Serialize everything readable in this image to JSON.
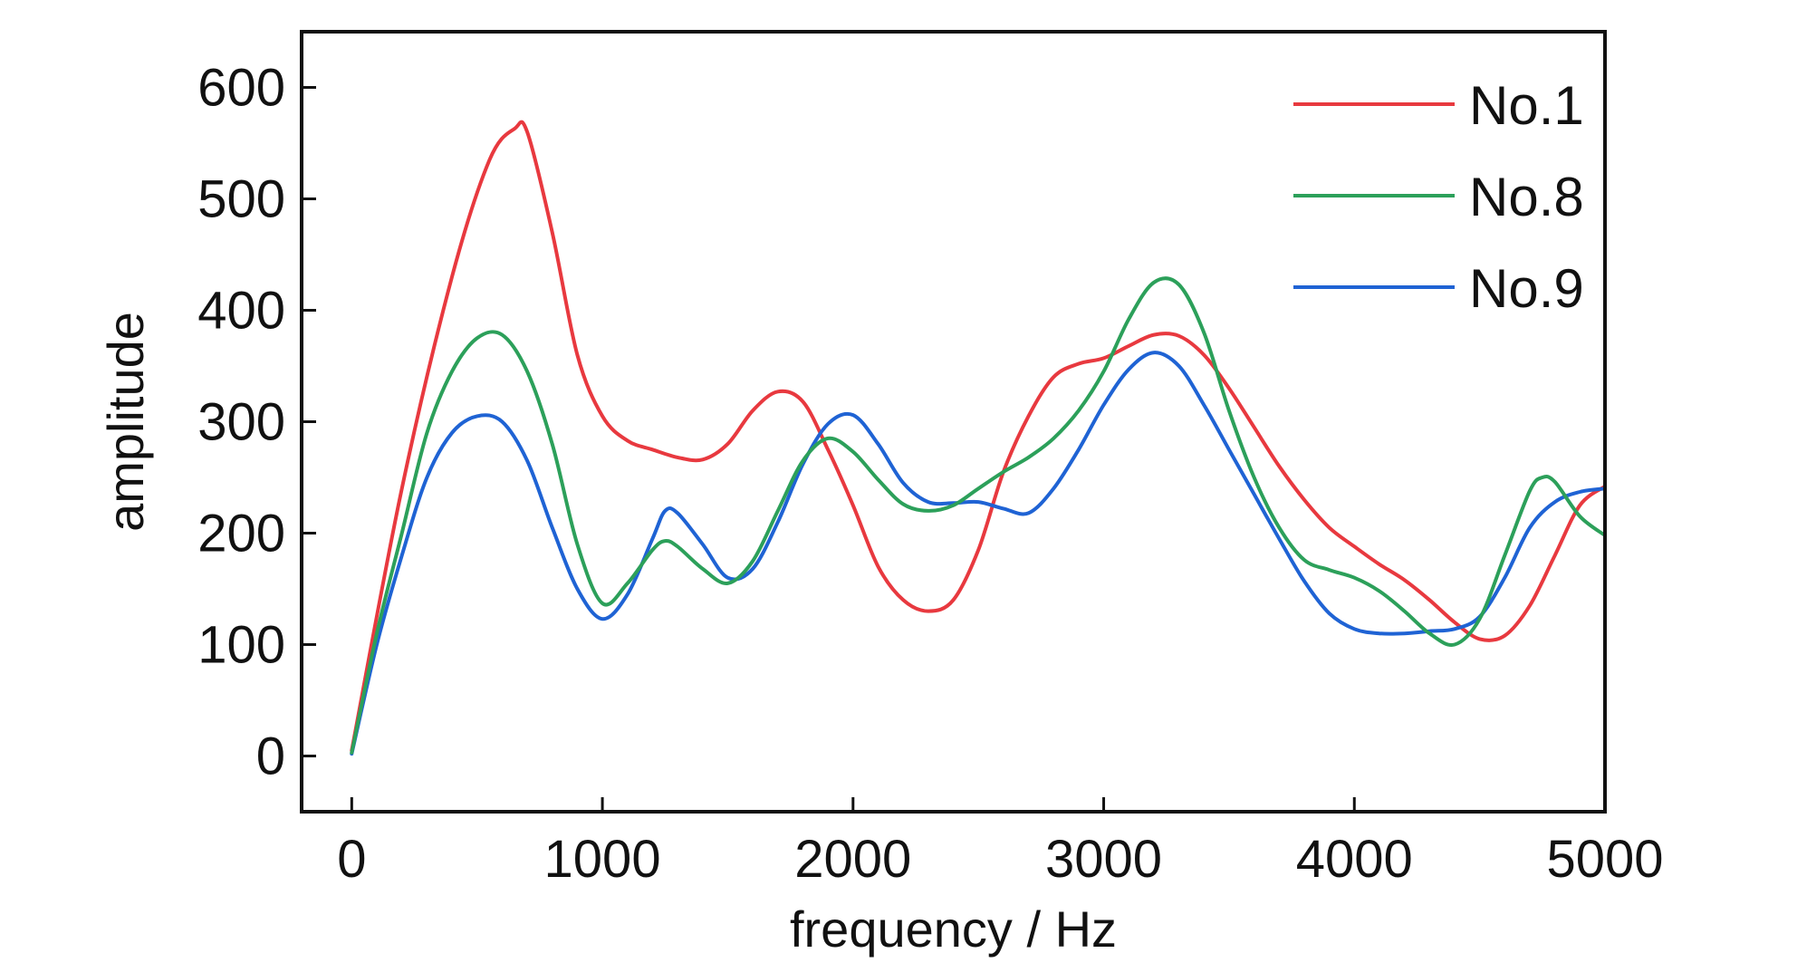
{
  "chart_data": {
    "type": "line",
    "xlabel": "frequency / Hz",
    "ylabel": "amplitude",
    "xlim": [
      -200,
      5000
    ],
    "ylim": [
      -50,
      650
    ],
    "xticks": [
      0,
      1000,
      2000,
      3000,
      4000,
      5000
    ],
    "yticks": [
      0,
      100,
      200,
      300,
      400,
      500,
      600
    ],
    "grid": false,
    "legend_position": "top-right",
    "series": [
      {
        "name": "No.1",
        "color": "#e8393f",
        "points": [
          [
            0,
            5
          ],
          [
            200,
            240
          ],
          [
            400,
            430
          ],
          [
            550,
            535
          ],
          [
            650,
            563
          ],
          [
            700,
            560
          ],
          [
            800,
            470
          ],
          [
            900,
            360
          ],
          [
            1000,
            305
          ],
          [
            1100,
            283
          ],
          [
            1200,
            275
          ],
          [
            1300,
            268
          ],
          [
            1400,
            266
          ],
          [
            1500,
            280
          ],
          [
            1600,
            310
          ],
          [
            1700,
            327
          ],
          [
            1800,
            318
          ],
          [
            1900,
            275
          ],
          [
            2000,
            225
          ],
          [
            2100,
            170
          ],
          [
            2200,
            140
          ],
          [
            2300,
            130
          ],
          [
            2400,
            140
          ],
          [
            2500,
            185
          ],
          [
            2600,
            255
          ],
          [
            2700,
            305
          ],
          [
            2800,
            340
          ],
          [
            2900,
            352
          ],
          [
            3000,
            357
          ],
          [
            3100,
            368
          ],
          [
            3200,
            378
          ],
          [
            3300,
            377
          ],
          [
            3400,
            360
          ],
          [
            3500,
            330
          ],
          [
            3600,
            295
          ],
          [
            3700,
            260
          ],
          [
            3800,
            230
          ],
          [
            3900,
            205
          ],
          [
            4000,
            188
          ],
          [
            4100,
            172
          ],
          [
            4200,
            158
          ],
          [
            4300,
            140
          ],
          [
            4400,
            120
          ],
          [
            4500,
            105
          ],
          [
            4600,
            108
          ],
          [
            4700,
            135
          ],
          [
            4800,
            180
          ],
          [
            4900,
            225
          ],
          [
            5000,
            242
          ]
        ]
      },
      {
        "name": "No.8",
        "color": "#2ca05a",
        "points": [
          [
            0,
            3
          ],
          [
            100,
            110
          ],
          [
            200,
            200
          ],
          [
            300,
            290
          ],
          [
            400,
            345
          ],
          [
            500,
            375
          ],
          [
            600,
            378
          ],
          [
            700,
            345
          ],
          [
            800,
            280
          ],
          [
            900,
            190
          ],
          [
            1000,
            137
          ],
          [
            1100,
            155
          ],
          [
            1200,
            185
          ],
          [
            1250,
            193
          ],
          [
            1300,
            188
          ],
          [
            1400,
            168
          ],
          [
            1500,
            155
          ],
          [
            1600,
            175
          ],
          [
            1700,
            220
          ],
          [
            1800,
            265
          ],
          [
            1900,
            285
          ],
          [
            2000,
            273
          ],
          [
            2100,
            248
          ],
          [
            2200,
            226
          ],
          [
            2300,
            220
          ],
          [
            2400,
            225
          ],
          [
            2500,
            240
          ],
          [
            2600,
            255
          ],
          [
            2700,
            268
          ],
          [
            2800,
            285
          ],
          [
            2900,
            310
          ],
          [
            3000,
            345
          ],
          [
            3100,
            392
          ],
          [
            3200,
            425
          ],
          [
            3300,
            423
          ],
          [
            3400,
            380
          ],
          [
            3500,
            310
          ],
          [
            3600,
            250
          ],
          [
            3700,
            205
          ],
          [
            3800,
            176
          ],
          [
            3900,
            167
          ],
          [
            4000,
            160
          ],
          [
            4100,
            148
          ],
          [
            4200,
            130
          ],
          [
            4300,
            110
          ],
          [
            4400,
            100
          ],
          [
            4500,
            123
          ],
          [
            4600,
            180
          ],
          [
            4700,
            238
          ],
          [
            4750,
            250
          ],
          [
            4800,
            246
          ],
          [
            4900,
            215
          ],
          [
            5000,
            198
          ]
        ]
      },
      {
        "name": "No.9",
        "color": "#1f63d4",
        "points": [
          [
            0,
            2
          ],
          [
            100,
            100
          ],
          [
            200,
            180
          ],
          [
            300,
            250
          ],
          [
            400,
            290
          ],
          [
            500,
            305
          ],
          [
            600,
            300
          ],
          [
            700,
            265
          ],
          [
            800,
            205
          ],
          [
            900,
            150
          ],
          [
            1000,
            123
          ],
          [
            1100,
            145
          ],
          [
            1200,
            195
          ],
          [
            1250,
            220
          ],
          [
            1300,
            218
          ],
          [
            1400,
            190
          ],
          [
            1500,
            160
          ],
          [
            1600,
            168
          ],
          [
            1700,
            210
          ],
          [
            1800,
            262
          ],
          [
            1900,
            298
          ],
          [
            2000,
            306
          ],
          [
            2100,
            280
          ],
          [
            2200,
            245
          ],
          [
            2300,
            228
          ],
          [
            2400,
            227
          ],
          [
            2500,
            228
          ],
          [
            2600,
            222
          ],
          [
            2700,
            218
          ],
          [
            2800,
            240
          ],
          [
            2900,
            275
          ],
          [
            3000,
            315
          ],
          [
            3100,
            347
          ],
          [
            3200,
            362
          ],
          [
            3300,
            350
          ],
          [
            3400,
            315
          ],
          [
            3500,
            275
          ],
          [
            3600,
            235
          ],
          [
            3700,
            195
          ],
          [
            3800,
            157
          ],
          [
            3900,
            128
          ],
          [
            4000,
            114
          ],
          [
            4100,
            110
          ],
          [
            4200,
            110
          ],
          [
            4300,
            112
          ],
          [
            4400,
            114
          ],
          [
            4500,
            125
          ],
          [
            4600,
            160
          ],
          [
            4700,
            205
          ],
          [
            4800,
            228
          ],
          [
            4900,
            237
          ],
          [
            5000,
            240
          ]
        ]
      }
    ]
  }
}
